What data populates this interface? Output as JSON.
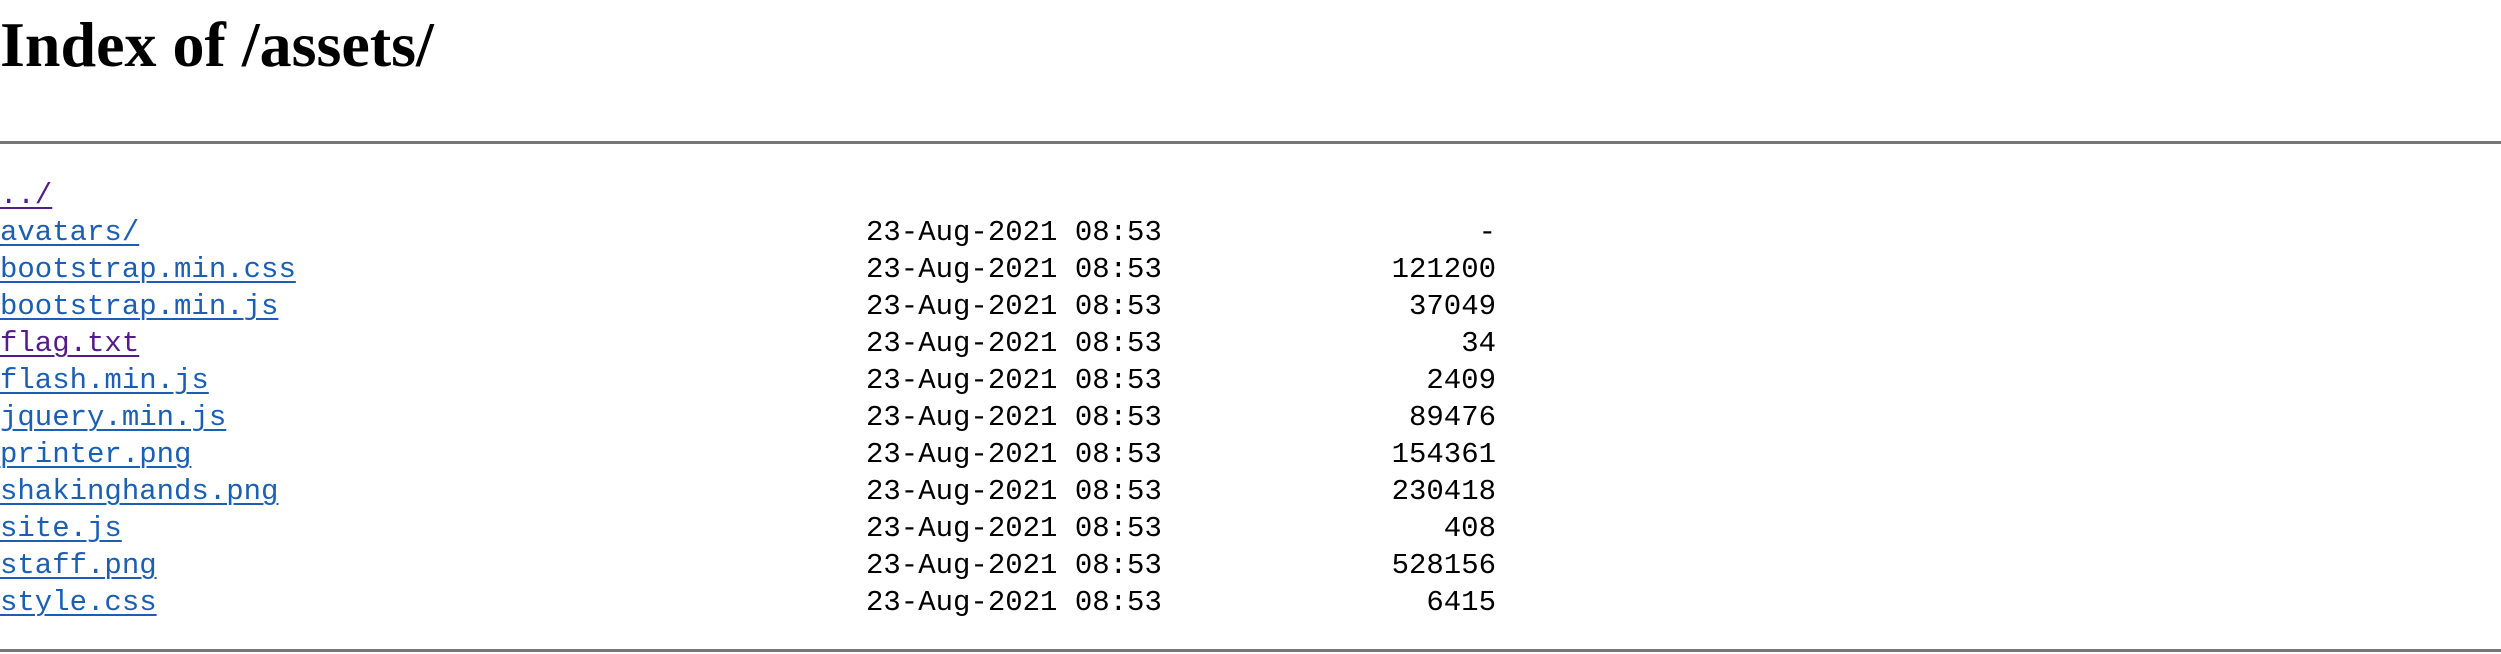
{
  "page": {
    "title": "Index of /assets/"
  },
  "colors": {
    "link": "#1a5fb4",
    "visited_link": "#551a8b",
    "rule": "#777777",
    "background": "#ffffff",
    "text": "#000000"
  },
  "listing": [
    {
      "name": "../",
      "date": "",
      "size": "",
      "visited": true
    },
    {
      "name": "avatars/",
      "date": "23-Aug-2021 08:53",
      "size": "-",
      "visited": false
    },
    {
      "name": "bootstrap.min.css",
      "date": "23-Aug-2021 08:53",
      "size": "121200",
      "visited": false
    },
    {
      "name": "bootstrap.min.js",
      "date": "23-Aug-2021 08:53",
      "size": "37049",
      "visited": false
    },
    {
      "name": "flag.txt",
      "date": "23-Aug-2021 08:53",
      "size": "34",
      "visited": true
    },
    {
      "name": "flash.min.js",
      "date": "23-Aug-2021 08:53",
      "size": "2409",
      "visited": false
    },
    {
      "name": "jquery.min.js",
      "date": "23-Aug-2021 08:53",
      "size": "89476",
      "visited": false
    },
    {
      "name": "printer.png",
      "date": "23-Aug-2021 08:53",
      "size": "154361",
      "visited": false
    },
    {
      "name": "shakinghands.png",
      "date": "23-Aug-2021 08:53",
      "size": "230418",
      "visited": false
    },
    {
      "name": "site.js",
      "date": "23-Aug-2021 08:53",
      "size": "408",
      "visited": false
    },
    {
      "name": "staff.png",
      "date": "23-Aug-2021 08:53",
      "size": "528156",
      "visited": false
    },
    {
      "name": "style.css",
      "date": "23-Aug-2021 08:53",
      "size": "6415",
      "visited": false
    }
  ]
}
